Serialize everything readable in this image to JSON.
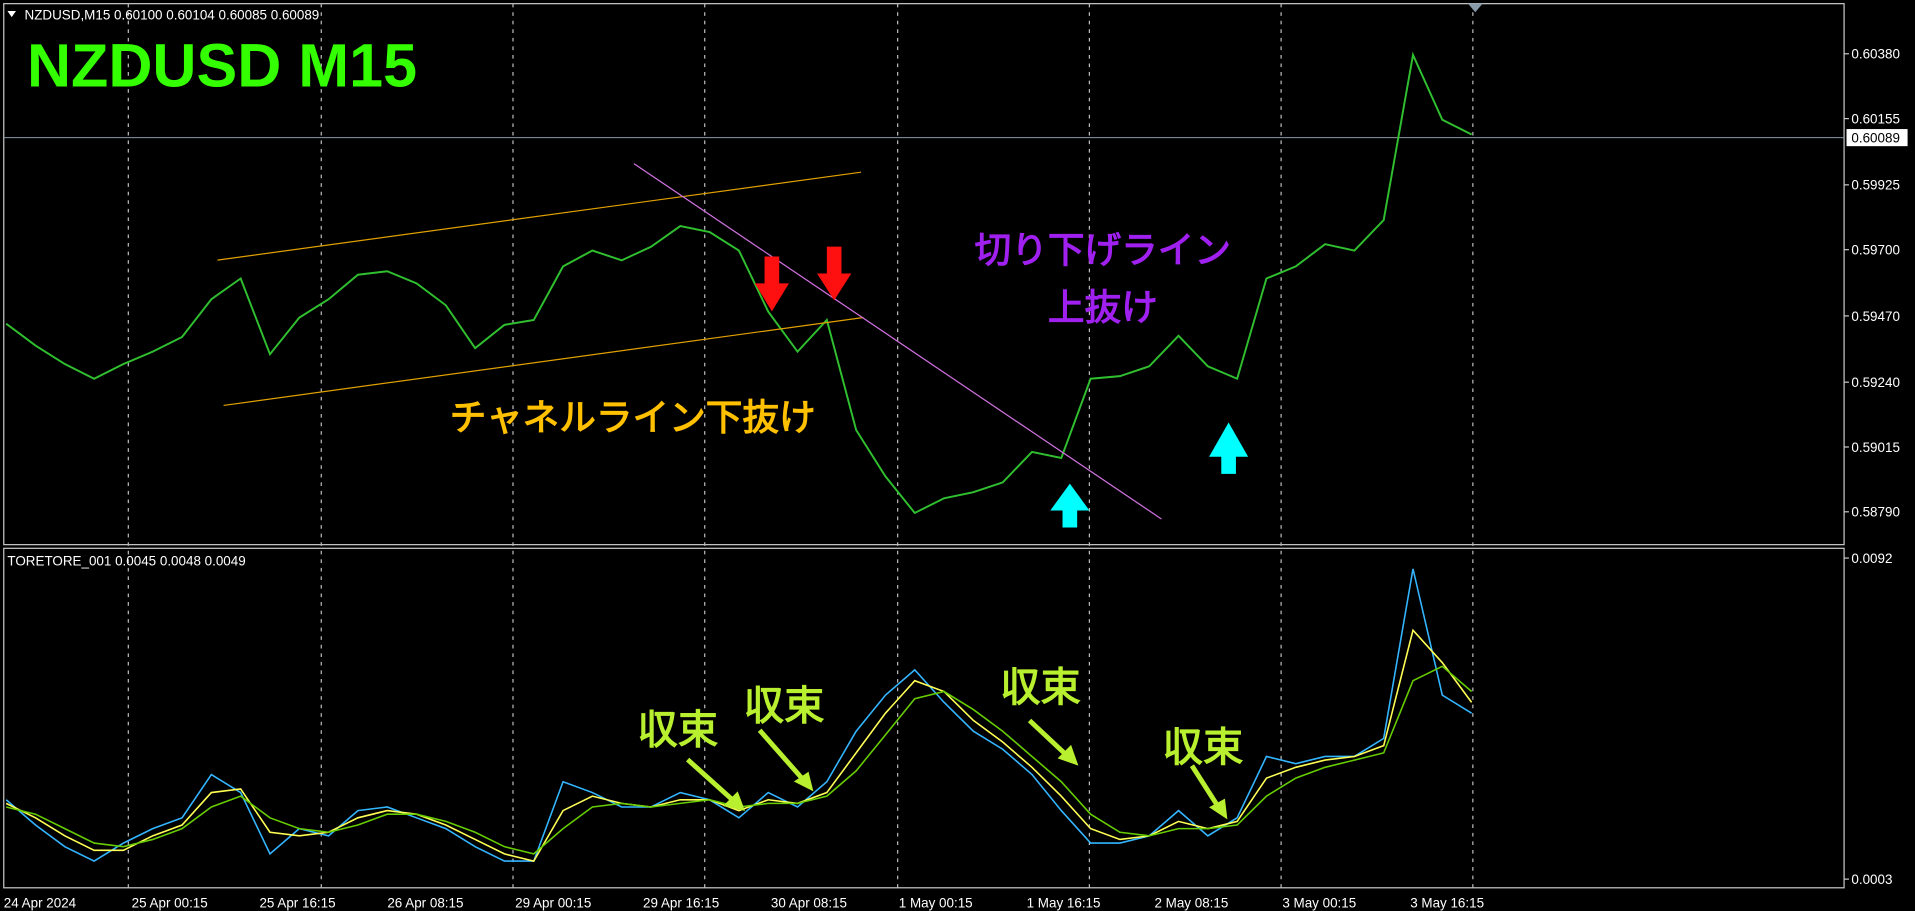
{
  "chart_data": [
    {
      "type": "line",
      "header": "NZDUSD,M15  0.60100 0.60104 0.60085 0.60089",
      "title": "NZDUSD  M15",
      "color": "#2fbf2f",
      "values": [
        0.59443,
        0.59367,
        0.59303,
        0.59252,
        0.59303,
        0.59346,
        0.59397,
        0.59528,
        0.596,
        0.59337,
        0.59464,
        0.59528,
        0.59613,
        0.59625,
        0.59583,
        0.59507,
        0.59358,
        0.59439,
        0.59456,
        0.59642,
        0.59697,
        0.59663,
        0.5971,
        0.59782,
        0.59761,
        0.59697,
        0.59485,
        0.59346,
        0.59456,
        0.59074,
        0.58913,
        0.58786,
        0.58837,
        0.58858,
        0.58892,
        0.58998,
        0.58977,
        0.59252,
        0.59261,
        0.59295,
        0.59401,
        0.59295,
        0.59252,
        0.596,
        0.59642,
        0.59719,
        0.59697,
        0.59803,
        0.60376,
        0.60151,
        0.601
      ],
      "ylim": [
        0.58676,
        0.60554
      ],
      "yticks": [
        {
          "value": 0.5879,
          "label": "0.58790"
        },
        {
          "value": 0.59015,
          "label": "0.59015"
        },
        {
          "value": 0.5924,
          "label": "0.59240"
        },
        {
          "value": 0.5947,
          "label": "0.59470"
        },
        {
          "value": 0.597,
          "label": "0.59700"
        },
        {
          "value": 0.59925,
          "label": "0.59925"
        },
        {
          "value": 0.60155,
          "label": "0.60155"
        },
        {
          "value": 0.6038,
          "label": "0.60380"
        }
      ],
      "current_price": {
        "value": 0.60089,
        "label": "0.60089"
      },
      "annotations": [
        "切り下げライン",
        "上抜け",
        "チャネルライン下抜け"
      ]
    },
    {
      "type": "line",
      "header": "TORETORE_001 0.0045 0.0048 0.0049",
      "series": [
        {
          "color": "#33b5ff",
          "values": [
            0.0025,
            0.0018,
            0.0012,
            0.0008,
            0.0013,
            0.0017,
            0.002,
            0.0032,
            0.0027,
            0.001,
            0.0017,
            0.0015,
            0.0022,
            0.0023,
            0.002,
            0.0017,
            0.0012,
            0.0008,
            0.0008,
            0.003,
            0.0027,
            0.0023,
            0.0023,
            0.0027,
            0.0025,
            0.002,
            0.0027,
            0.0023,
            0.003,
            0.0044,
            0.0054,
            0.0061,
            0.0052,
            0.0044,
            0.0039,
            0.0032,
            0.0022,
            0.0013,
            0.0013,
            0.0015,
            0.0022,
            0.0015,
            0.002,
            0.0037,
            0.0035,
            0.0037,
            0.0037,
            0.0042,
            0.0089,
            0.0054,
            0.0049
          ]
        },
        {
          "color": "#ffff55",
          "values": [
            0.0024,
            0.002,
            0.0015,
            0.0011,
            0.0011,
            0.0015,
            0.0018,
            0.0027,
            0.0028,
            0.0016,
            0.0015,
            0.0016,
            0.002,
            0.0022,
            0.0021,
            0.0018,
            0.0014,
            0.001,
            0.0008,
            0.0022,
            0.0026,
            0.0024,
            0.0023,
            0.0025,
            0.0025,
            0.0022,
            0.0025,
            0.0024,
            0.0027,
            0.0038,
            0.0049,
            0.0058,
            0.0055,
            0.0047,
            0.0041,
            0.0034,
            0.0026,
            0.0017,
            0.0014,
            0.0015,
            0.0019,
            0.0017,
            0.0019,
            0.0031,
            0.0034,
            0.0036,
            0.0037,
            0.004,
            0.0072,
            0.0063,
            0.0052
          ]
        },
        {
          "color": "#66cc00",
          "values": [
            0.0023,
            0.0021,
            0.0017,
            0.0013,
            0.0012,
            0.0014,
            0.0017,
            0.0023,
            0.0026,
            0.002,
            0.0017,
            0.0016,
            0.0018,
            0.0021,
            0.0021,
            0.0019,
            0.0016,
            0.0012,
            0.001,
            0.0017,
            0.0023,
            0.0024,
            0.0023,
            0.0024,
            0.0025,
            0.0023,
            0.0024,
            0.0024,
            0.0026,
            0.0033,
            0.0043,
            0.0053,
            0.0055,
            0.005,
            0.0044,
            0.0037,
            0.003,
            0.0021,
            0.0016,
            0.0015,
            0.0017,
            0.0017,
            0.0018,
            0.0026,
            0.0031,
            0.0034,
            0.0036,
            0.0038,
            0.0058,
            0.0062,
            0.0055
          ]
        }
      ],
      "ylim": [
        6e-05,
        0.00947
      ],
      "yticks": [
        0.0092,
        0.0003
      ],
      "annotations": [
        "収束",
        "収束",
        "収束",
        "収束"
      ],
      "time_labels": [
        "24 Apr 2024",
        "25 Apr 00:15",
        "25 Apr 16:15",
        "26 Apr 08:15",
        "29 Apr 00:15",
        "29 Apr 16:15",
        "30 Apr 08:15",
        "1 May 00:15",
        "1 May 16:15",
        "2 May 08:15",
        "3 May 00:15",
        "3 May 16:15"
      ]
    }
  ]
}
